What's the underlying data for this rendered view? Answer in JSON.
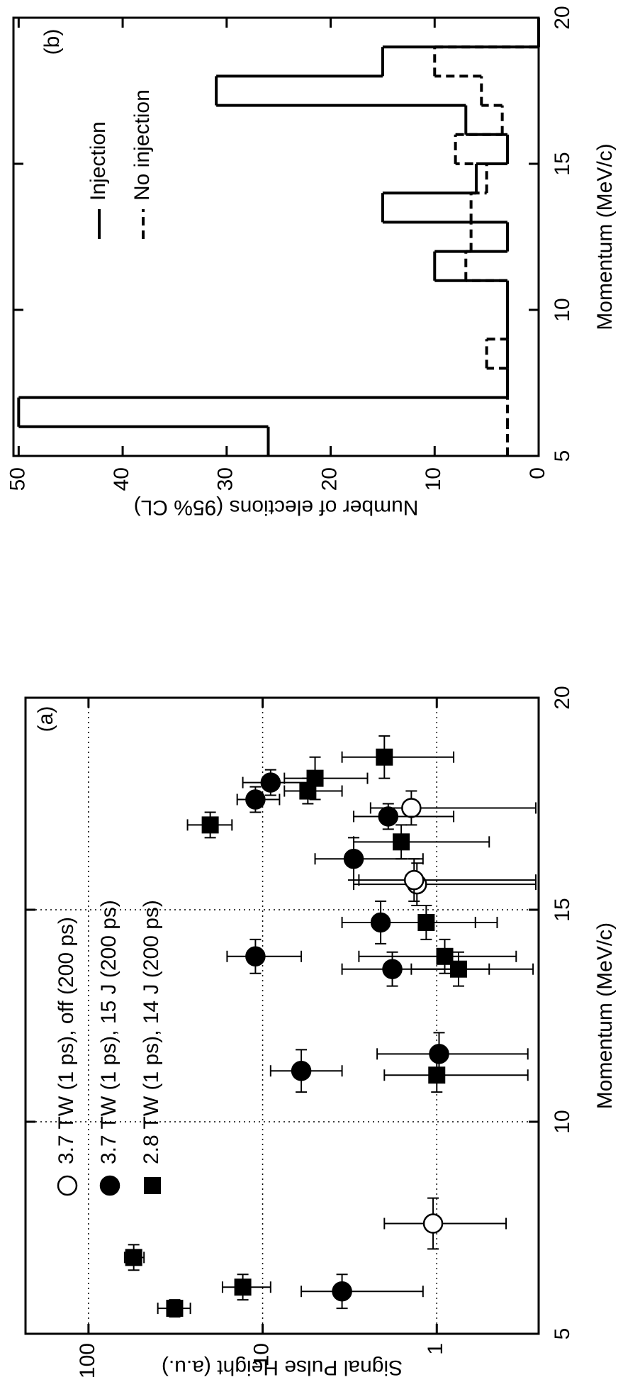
{
  "chart_data": [
    {
      "type": "scatter",
      "label": "(a)",
      "xlabel": "Momentum (MeV/c)",
      "ylabel": "Signal Pulse Height (a.u.)",
      "xlim": [
        5,
        20
      ],
      "xticks": [
        5,
        10,
        15,
        20
      ],
      "ylim": [
        0.26,
        230
      ],
      "yticks": [
        1,
        10,
        100
      ],
      "log_y": true,
      "grid": true,
      "series": [
        {
          "name": "3.7 TW (1 ps), off (200 ps)",
          "marker": "open-circle",
          "color": "#000000",
          "x": [
            7.6,
            15.6,
            15.7,
            17.4
          ],
          "values": [
            1.05,
            1.3,
            1.35,
            1.4
          ],
          "y_low": [
            0.4,
            0.27,
            0.27,
            0.27
          ],
          "y_high": [
            2.0,
            3.0,
            2.8,
            2.4
          ],
          "x_err": [
            0.6,
            0.5,
            0.5,
            0.4
          ]
        },
        {
          "name": "3.7 TW (1 ps), 15 J (200 ps)",
          "marker": "filled-circle",
          "color": "#000000",
          "x": [
            6.0,
            11.2,
            11.6,
            13.6,
            13.9,
            14.7,
            16.2,
            17.2,
            17.6,
            18.0
          ],
          "values": [
            3.5,
            6.0,
            0.97,
            1.8,
            11,
            2.1,
            3.0,
            1.9,
            11,
            9
          ],
          "y_low": [
            1.2,
            3.5,
            0.3,
            0.5,
            6,
            0.6,
            1.2,
            0.8,
            8,
            5
          ],
          "y_high": [
            6,
            9,
            2.2,
            3.5,
            16,
            3.5,
            5,
            3,
            14,
            13
          ],
          "x_err": [
            0.4,
            0.5,
            0.5,
            0.4,
            0.4,
            0.5,
            0.5,
            0.3,
            0.3,
            0.3
          ]
        },
        {
          "name": "2.8 TW (1 ps), 14 J (200 ps)",
          "marker": "filled-square",
          "color": "#000000",
          "x": [
            5.6,
            6.1,
            6.8,
            11.1,
            13.6,
            13.9,
            14.7,
            16.6,
            17.0,
            17.8,
            18.1,
            18.6
          ],
          "values": [
            32,
            13,
            55,
            1.0,
            0.75,
            0.9,
            1.15,
            1.6,
            20,
            5.5,
            5,
            2
          ],
          "y_low": [
            26,
            9,
            48,
            0.3,
            0.28,
            0.35,
            0.45,
            0.5,
            15,
            3.5,
            2.5,
            0.8
          ],
          "y_high": [
            40,
            17,
            62,
            2,
            1.4,
            2.8,
            2,
            3,
            27,
            7.5,
            7.5,
            3.5
          ],
          "x_err": [
            0.2,
            0.3,
            0.3,
            0.4,
            0.4,
            0.4,
            0.4,
            0.4,
            0.3,
            0.3,
            0.5,
            0.5
          ]
        }
      ]
    },
    {
      "type": "histogram",
      "label": "(b)",
      "xlabel": "Momentum (MeV/c)",
      "ylabel": "Number of elections (95% CL)",
      "bins": [
        5,
        6,
        7,
        8,
        9,
        10,
        11,
        12,
        13,
        14,
        15,
        16,
        17,
        18,
        19,
        20
      ],
      "xlim": [
        5,
        20
      ],
      "xticks": [
        5,
        10,
        15,
        20
      ],
      "ylim": [
        0,
        50.5
      ],
      "yticks": [
        0,
        10,
        20,
        30,
        40,
        50
      ],
      "series": [
        {
          "name": "Injection",
          "line_style": "solid",
          "color": "#000000",
          "values": [
            26,
            50,
            3,
            3,
            3,
            3,
            10,
            3,
            15,
            6,
            3,
            7,
            31,
            15,
            0
          ]
        },
        {
          "name": "No injection",
          "line_style": "dashed",
          "color": "#000000",
          "values": [
            3,
            3,
            3,
            5,
            3,
            3,
            7,
            6.5,
            6.5,
            5,
            8,
            3.5,
            5.5,
            10,
            0
          ]
        }
      ]
    }
  ]
}
